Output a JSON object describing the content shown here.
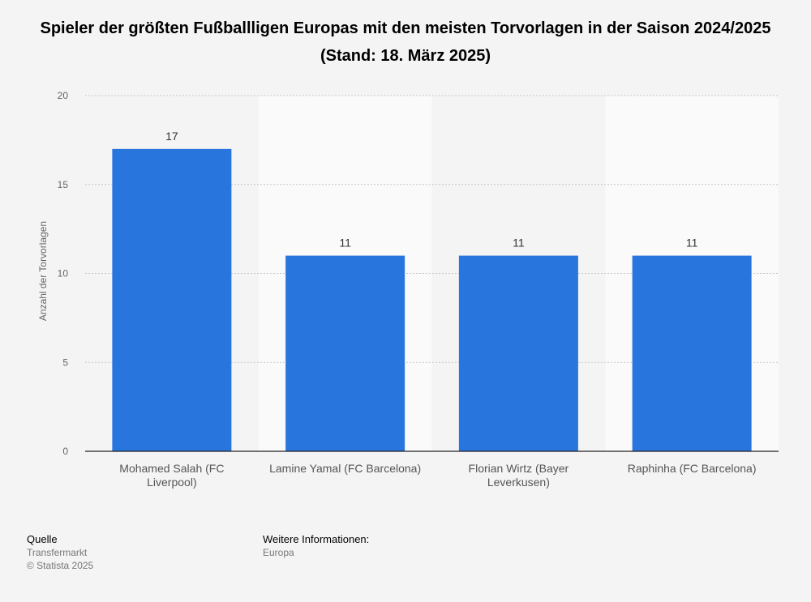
{
  "chart_data": {
    "type": "bar",
    "title": "Spieler der größten Fußballligen Europas mit den meisten Torvorlagen in der Saison 2024/2025 (Stand: 18. März 2025)",
    "xlabel": "",
    "ylabel": "Anzahl der Torvorlagen",
    "categories": [
      [
        "Mohamed Salah (FC",
        "Liverpool)"
      ],
      [
        "Lamine Yamal (FC Barcelona)"
      ],
      [
        "Florian Wirtz (Bayer",
        "Leverkusen)"
      ],
      [
        "Raphinha (FC Barcelona)"
      ]
    ],
    "values": [
      17,
      11,
      11,
      11
    ],
    "ylim": [
      0,
      20
    ],
    "yticks": [
      0,
      5,
      10,
      15,
      20
    ],
    "grid": true,
    "bar_color": "#2876dd"
  },
  "footer": {
    "source_heading": "Quelle",
    "source": "Transfermarkt",
    "copyright": "© Statista 2025",
    "info_heading": "Weitere Informationen:",
    "info": "Europa"
  }
}
